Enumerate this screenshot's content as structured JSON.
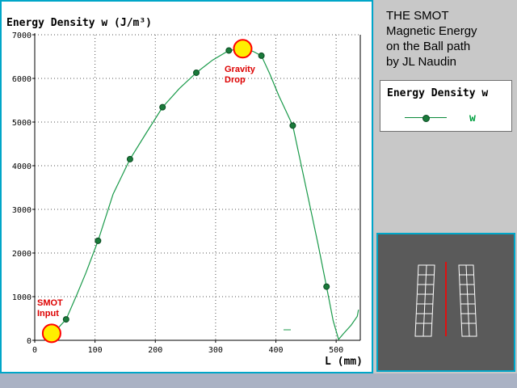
{
  "panel": {
    "title_lines": [
      "THE SMOT",
      "Magnetic Energy",
      "on the Ball path",
      "by JL Naudin"
    ]
  },
  "legend": {
    "title": "Energy Density w",
    "label": "w"
  },
  "annotations": {
    "start_label_lines": [
      "SMOT",
      "Input"
    ],
    "drop_label_lines": [
      "Gravity",
      "Drop"
    ]
  },
  "colors": {
    "series": "#1a9a4a",
    "marker": "#1a7a3a",
    "ball": "#ffee00",
    "ball_outline": "#ff0000",
    "annotation": "#dd0000",
    "frame": "#00a6c8"
  },
  "chart_data": {
    "type": "line",
    "title": "Energy Density w (J/m³)",
    "xlabel": "L (mm)",
    "ylabel": "Energy Density w (J/m³)",
    "xlim": [
      0,
      540
    ],
    "ylim": [
      0,
      7000
    ],
    "x_ticks": [
      0,
      100,
      200,
      300,
      400,
      500
    ],
    "y_ticks": [
      0,
      1000,
      2000,
      3000,
      4000,
      5000,
      6000,
      7000
    ],
    "grid": true,
    "legend_position": "right panel",
    "series": [
      {
        "name": "w",
        "curve": [
          [
            28,
            160
          ],
          [
            40,
            300
          ],
          [
            52,
            480
          ],
          [
            70,
            1050
          ],
          [
            85,
            1550
          ],
          [
            105,
            2280
          ],
          [
            130,
            3350
          ],
          [
            158,
            4150
          ],
          [
            185,
            4750
          ],
          [
            212,
            5340
          ],
          [
            240,
            5770
          ],
          [
            268,
            6130
          ],
          [
            295,
            6420
          ],
          [
            322,
            6640
          ],
          [
            345,
            6680
          ],
          [
            362,
            6620
          ],
          [
            376,
            6520
          ],
          [
            390,
            6100
          ],
          [
            405,
            5600
          ],
          [
            428,
            4920
          ],
          [
            450,
            3500
          ],
          [
            470,
            2200
          ],
          [
            484,
            1230
          ],
          [
            495,
            450
          ],
          [
            504,
            20
          ],
          [
            512,
            150
          ],
          [
            525,
            350
          ],
          [
            535,
            550
          ],
          [
            537,
            700
          ]
        ],
        "markers": [
          [
            52,
            480
          ],
          [
            105,
            2280
          ],
          [
            158,
            4150
          ],
          [
            212,
            5340
          ],
          [
            268,
            6130
          ],
          [
            322,
            6640
          ],
          [
            376,
            6520
          ],
          [
            428,
            4920
          ],
          [
            484,
            1230
          ]
        ]
      }
    ],
    "balls": [
      {
        "x": 28,
        "y": 160
      },
      {
        "x": 345,
        "y": 6680
      }
    ]
  }
}
